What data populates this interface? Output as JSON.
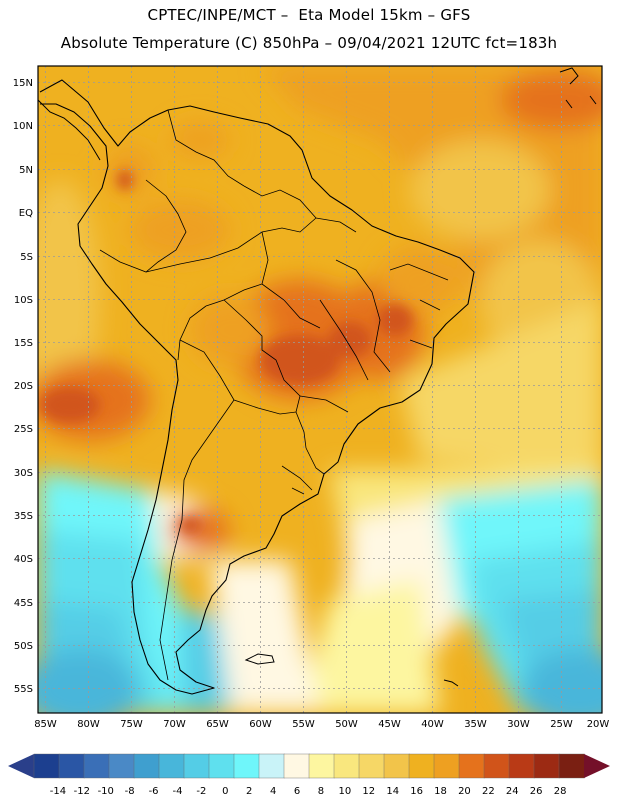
{
  "header": {
    "line1": "CPTEC/INPE/MCT –  Eta Model 15km – GFS",
    "line2": "Absolute Temperature (C) 850hPa – 09/04/2021 12UTC fct=183h"
  },
  "map": {
    "lat_labels": [
      "15N",
      "10N",
      "5N",
      "EQ",
      "5S",
      "10S",
      "15S",
      "20S",
      "25S",
      "30S",
      "35S",
      "40S",
      "45S",
      "50S",
      "55S"
    ],
    "lon_labels": [
      "85W",
      "80W",
      "75W",
      "70W",
      "65W",
      "60W",
      "55W",
      "50W",
      "45W",
      "40W",
      "35W",
      "30W",
      "25W",
      "20W"
    ]
  },
  "colorbar": {
    "labels": [
      "-14",
      "-12",
      "-10",
      "-8",
      "-6",
      "-4",
      "-2",
      "0",
      "2",
      "4",
      "6",
      "8",
      "10",
      "12",
      "14",
      "16",
      "18",
      "20",
      "22",
      "24",
      "26",
      "28"
    ],
    "colors": [
      "#1c3f8f",
      "#2a56a5",
      "#3a6fb7",
      "#4a89c6",
      "#3f9fcf",
      "#48b6da",
      "#54cde6",
      "#5fe0ee",
      "#6ff6fa",
      "#c9f3f8",
      "#fff8e3",
      "#fdf6a0",
      "#f9e77e",
      "#f6d766",
      "#f2c44a",
      "#efb120",
      "#eea021",
      "#e5721c",
      "#d1541a",
      "#b93a16",
      "#9c2a13",
      "#7a1f12"
    ],
    "low_color": "#2a3f8a",
    "high_color": "#741029"
  }
}
